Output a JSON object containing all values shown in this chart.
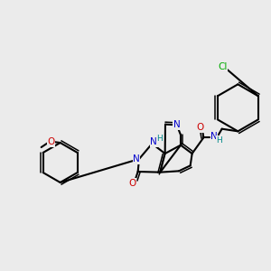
{
  "background_color": "#ebebeb",
  "bg_rgb": [
    0.922,
    0.922,
    0.922
  ],
  "bond_color": "#000000",
  "colors": {
    "C": "#000000",
    "N": "#0000cc",
    "O": "#cc0000",
    "Cl": "#00aa00",
    "H": "#008888"
  },
  "lw": 1.5,
  "dlw": 1.1
}
